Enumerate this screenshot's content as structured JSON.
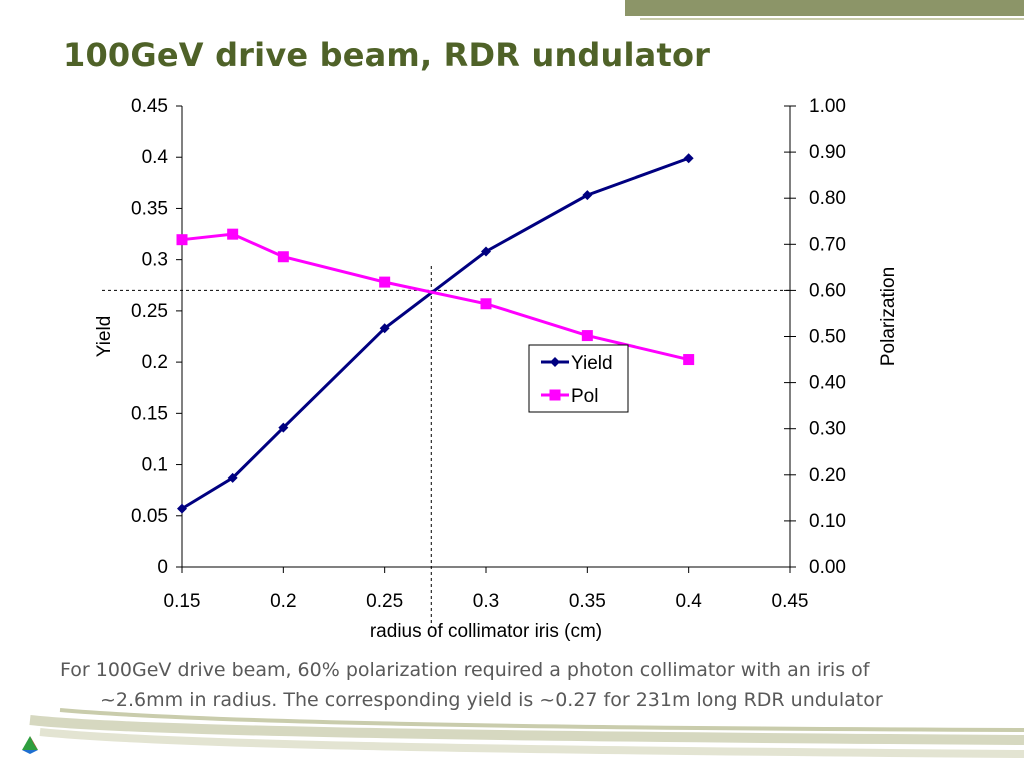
{
  "slide": {
    "title": "100GeV drive beam, RDR undulator",
    "caption_line1": "For 100GeV drive beam, 60% polarization required a photon collimator with an iris of",
    "caption_line2": "~2.6mm in radius.  The corresponding yield is ~0.27 for 231m long RDR undulator"
  },
  "colors": {
    "title": "#4f6228",
    "yield": "#000080",
    "pol": "#ff00ff",
    "accent_bar": "#8c9568"
  },
  "chart_data": {
    "type": "line",
    "xlabel": "radius of collimator iris (cm)",
    "ylabel_left": "Yield",
    "ylabel_right": "Polarization",
    "xlim": [
      0.15,
      0.45
    ],
    "ylim_left": [
      0,
      0.45
    ],
    "ylim_right": [
      0,
      1.0
    ],
    "x_ticks": [
      "0.15",
      "0.2",
      "0.25",
      "0.3",
      "0.35",
      "0.4",
      "0.45"
    ],
    "y_left_ticks": [
      "0",
      "0.05",
      "0.1",
      "0.15",
      "0.2",
      "0.25",
      "0.3",
      "0.35",
      "0.4",
      "0.45"
    ],
    "y_right_ticks": [
      "0.00",
      "0.10",
      "0.20",
      "0.30",
      "0.40",
      "0.50",
      "0.60",
      "0.70",
      "0.80",
      "0.90",
      "1.00"
    ],
    "legend_position": "center-right",
    "grid": false,
    "series": [
      {
        "name": "Yield",
        "axis": "left",
        "marker": "diamond",
        "x": [
          0.15,
          0.175,
          0.2,
          0.25,
          0.3,
          0.35,
          0.4
        ],
        "y": [
          0.057,
          0.087,
          0.136,
          0.233,
          0.308,
          0.363,
          0.399
        ]
      },
      {
        "name": "Pol",
        "axis": "right",
        "marker": "square",
        "x": [
          0.15,
          0.175,
          0.2,
          0.25,
          0.3,
          0.35,
          0.4
        ],
        "y": [
          0.71,
          0.722,
          0.673,
          0.618,
          0.571,
          0.502,
          0.45
        ]
      }
    ],
    "reference_lines": {
      "x": 0.273,
      "y_right": 0.6
    }
  }
}
